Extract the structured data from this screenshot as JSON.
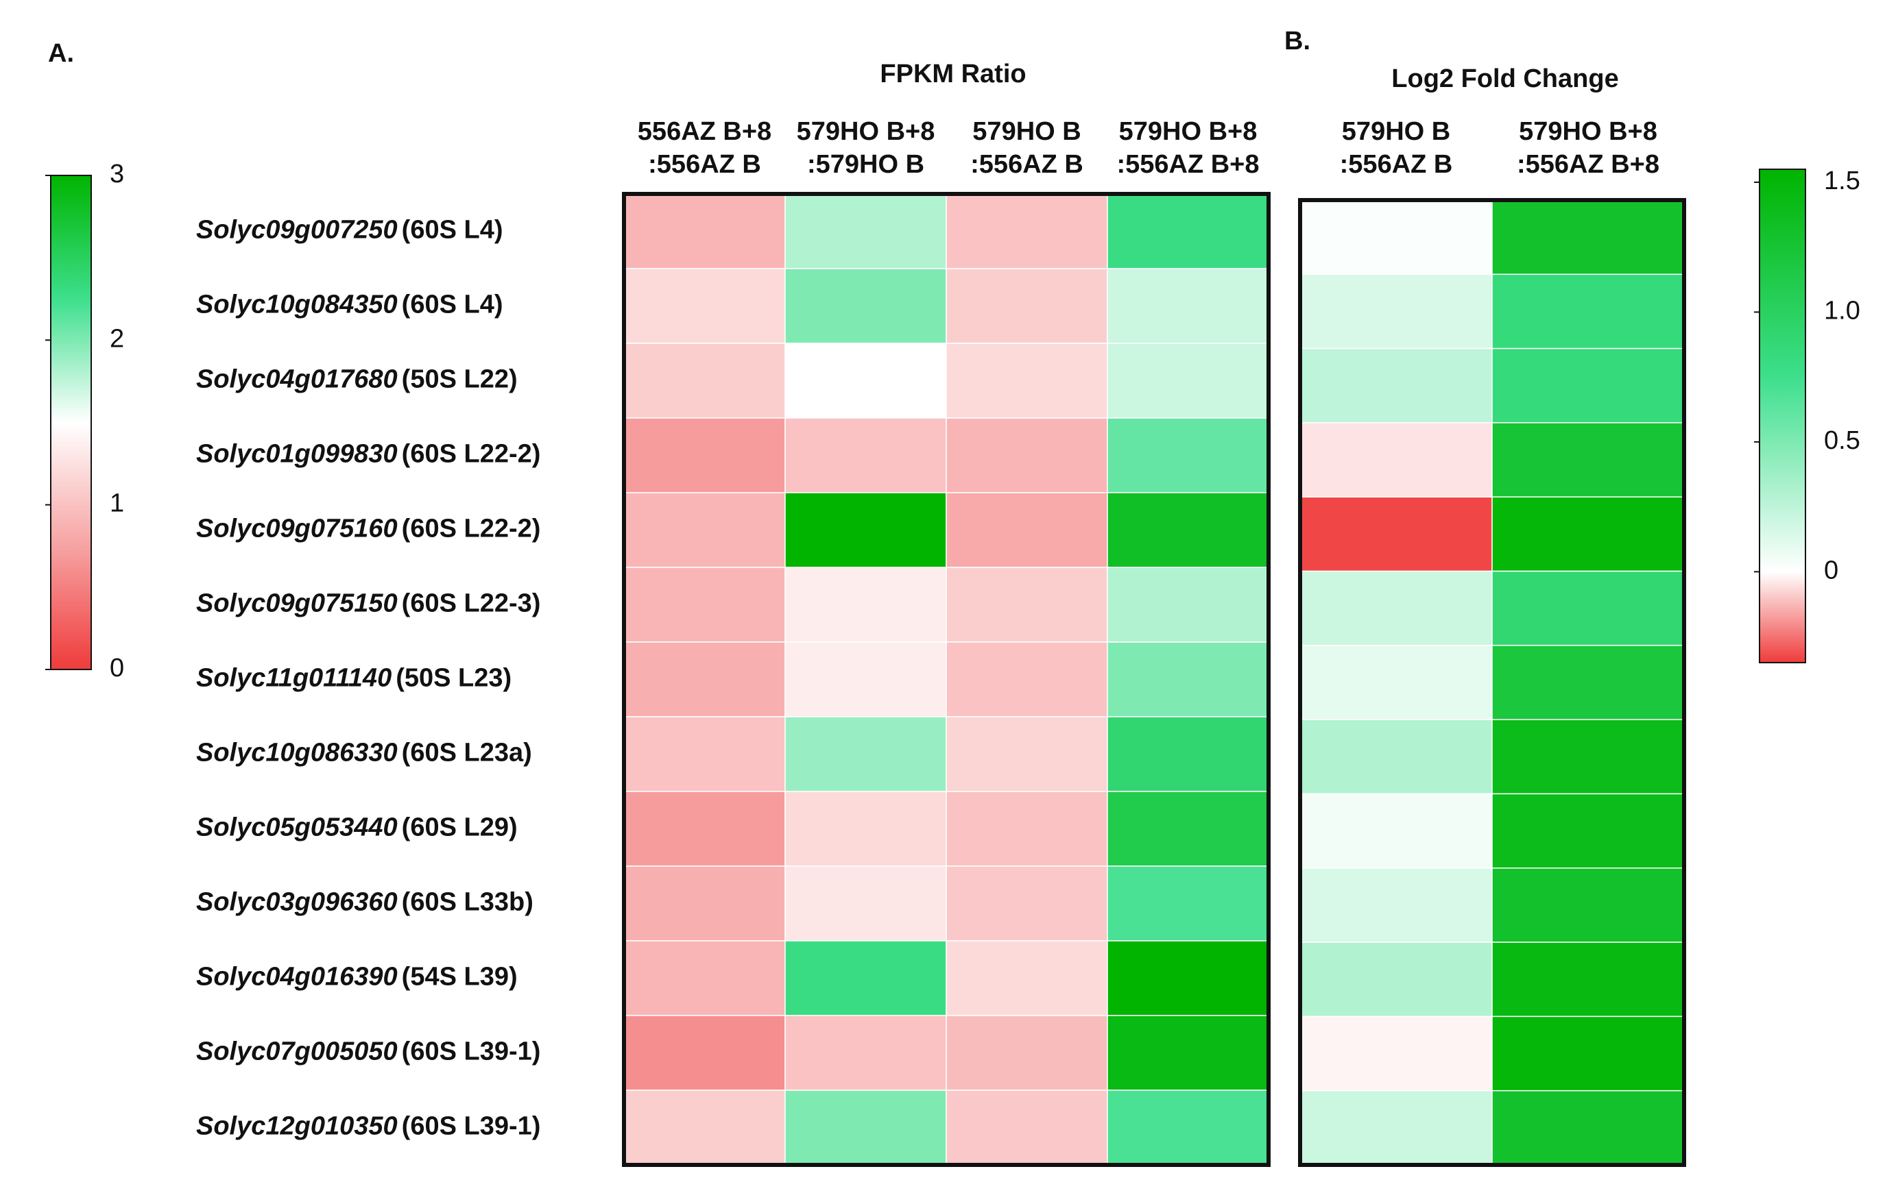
{
  "chart_data": [
    {
      "type": "heatmap",
      "panel_label": "A.",
      "title": "FPKM Ratio",
      "columns": [
        [
          "556AZ B+8",
          ":556AZ B"
        ],
        [
          "579HO B+8",
          ":579HO B"
        ],
        [
          "579HO B",
          ":556AZ B"
        ],
        [
          "579HO B+8",
          ":556AZ B+8"
        ]
      ],
      "rows": [
        {
          "gene": "Solyc09g007250",
          "protein": "(60S L4)"
        },
        {
          "gene": "Solyc10g084350",
          "protein": "(60S L4)"
        },
        {
          "gene": "Solyc04g017680",
          "protein": "(50S L22)"
        },
        {
          "gene": "Solyc01g099830",
          "protein": "(60S L22-2)"
        },
        {
          "gene": "Solyc09g075160",
          "protein": "(60S L22-2)"
        },
        {
          "gene": "Solyc09g075150",
          "protein": "(60S L22-3)"
        },
        {
          "gene": "Solyc11g011140",
          "protein": "(50S L23)"
        },
        {
          "gene": "Solyc10g086330",
          "protein": "(60S L23a)"
        },
        {
          "gene": "Solyc05g053440",
          "protein": "(60S L29)"
        },
        {
          "gene": "Solyc03g096360",
          "protein": "(60S L33b)"
        },
        {
          "gene": "Solyc04g016390",
          "protein": "(54S L39)"
        },
        {
          "gene": "Solyc07g005050",
          "protein": "(60S L39-1)"
        },
        {
          "gene": "Solyc12g010350",
          "protein": "(60S L39-1)"
        }
      ],
      "values": [
        [
          0.9,
          1.8,
          1.0,
          2.3
        ],
        [
          1.2,
          2.0,
          1.1,
          1.7
        ],
        [
          1.1,
          1.5,
          1.2,
          1.7
        ],
        [
          0.7,
          1.0,
          0.9,
          2.1
        ],
        [
          0.9,
          3.0,
          0.8,
          2.8
        ],
        [
          0.9,
          1.35,
          1.1,
          1.8
        ],
        [
          0.85,
          1.35,
          1.0,
          2.0
        ],
        [
          1.0,
          1.9,
          1.15,
          2.4
        ],
        [
          0.7,
          1.2,
          1.0,
          2.6
        ],
        [
          0.85,
          1.3,
          1.05,
          2.2
        ],
        [
          0.9,
          2.3,
          1.2,
          3.0
        ],
        [
          0.6,
          1.0,
          0.95,
          2.9
        ],
        [
          1.1,
          2.0,
          1.05,
          2.2
        ]
      ],
      "colorscale": [
        [
          0,
          "#ef3b3b"
        ],
        [
          0.75,
          "#f7a3a3"
        ],
        [
          1.5,
          "#ffffff"
        ],
        [
          2.25,
          "#3ddf8c"
        ],
        [
          3,
          "#00b400"
        ]
      ],
      "zlim": [
        0,
        3
      ],
      "zticks": [
        0,
        1,
        2,
        3
      ]
    },
    {
      "type": "heatmap",
      "panel_label": "B.",
      "title": "Log2 Fold Change",
      "columns": [
        [
          "579HO B",
          ":556AZ B"
        ],
        [
          "579HO B+8",
          ":556AZ B+8"
        ]
      ],
      "values": [
        [
          0.02,
          1.3
        ],
        [
          0.15,
          0.85
        ],
        [
          0.25,
          0.85
        ],
        [
          -0.05,
          1.25
        ],
        [
          -0.33,
          1.5
        ],
        [
          0.2,
          0.9
        ],
        [
          0.1,
          1.2
        ],
        [
          0.3,
          1.4
        ],
        [
          0.05,
          1.4
        ],
        [
          0.15,
          1.3
        ],
        [
          0.3,
          1.45
        ],
        [
          -0.02,
          1.5
        ],
        [
          0.2,
          1.3
        ]
      ],
      "colorscale": [
        [
          -0.35,
          "#ef3b3b"
        ],
        [
          0,
          "#ffffff"
        ],
        [
          0.75,
          "#3ddf8c"
        ],
        [
          1.55,
          "#00b400"
        ]
      ],
      "zlim": [
        -0.35,
        1.55
      ],
      "zticks": [
        0,
        0.5,
        {
          "value": 1,
          "label": "1.0"
        },
        1.5
      ]
    }
  ]
}
